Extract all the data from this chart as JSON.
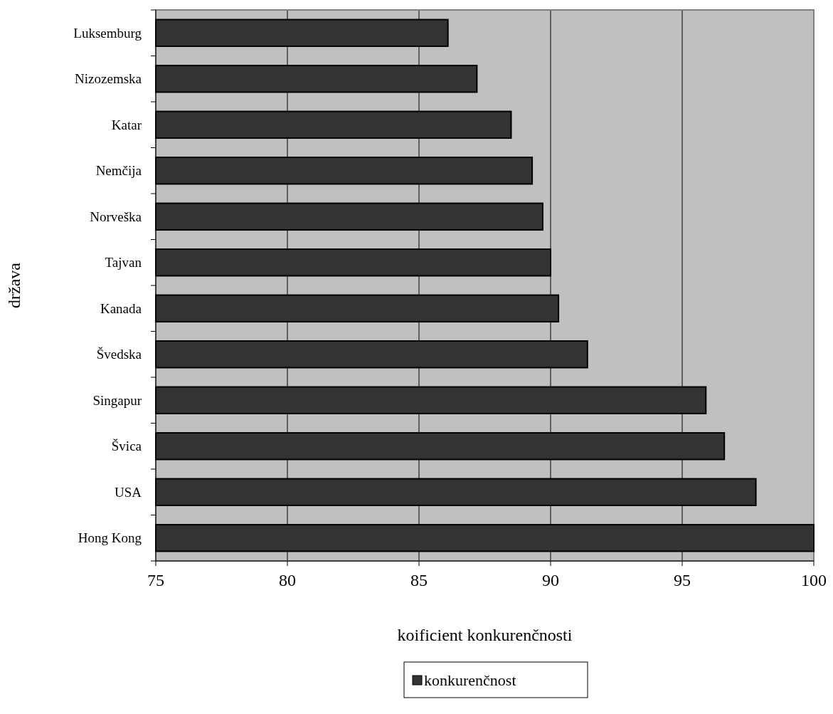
{
  "chart_data": {
    "type": "bar",
    "orientation": "horizontal",
    "xlabel": "koificient konkurenčnosti",
    "ylabel": "država",
    "categories": [
      "Luksemburg",
      "Nizozemska",
      "Katar",
      "Nemčija",
      "Norveška",
      "Tajvan",
      "Kanada",
      "Švedska",
      "Singapur",
      "Švica",
      "USA",
      "Hong Kong"
    ],
    "series": [
      {
        "name": "konkurenčnost",
        "color": "#333333",
        "values": [
          86.1,
          87.2,
          88.5,
          89.3,
          89.7,
          90.0,
          90.3,
          91.4,
          95.9,
          96.6,
          97.8,
          100
        ]
      }
    ],
    "xlim": [
      75,
      100
    ],
    "xticks": [
      75,
      80,
      85,
      90,
      95,
      100
    ],
    "grid": "x",
    "legend": "bottom"
  }
}
